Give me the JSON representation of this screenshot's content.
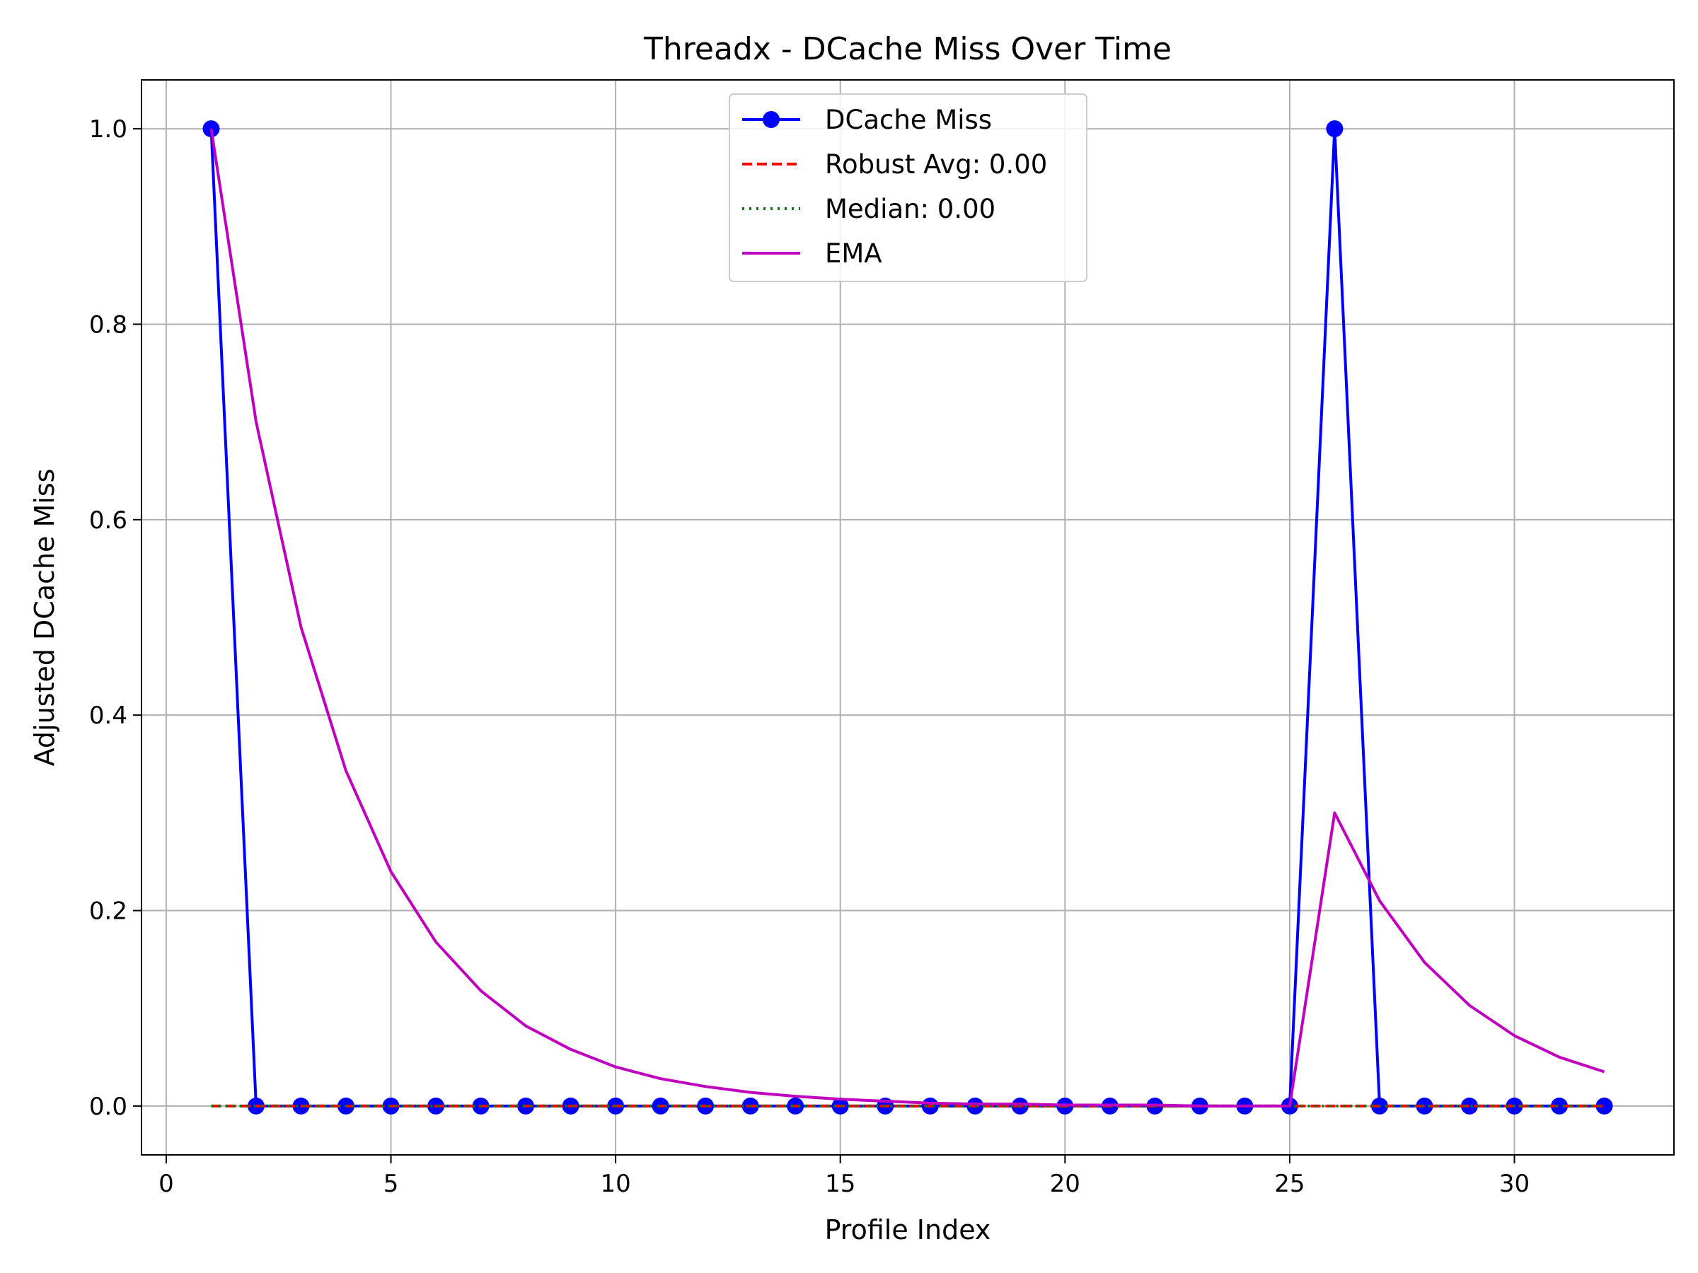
{
  "chart_data": {
    "type": "line",
    "title": "Threadx - DCache Miss Over Time",
    "xlabel": "Profile Index",
    "ylabel": "Adjusted DCache Miss",
    "xlim": [
      -0.55,
      33.55
    ],
    "ylim": [
      -0.05,
      1.05
    ],
    "xticks": [
      0,
      5,
      10,
      15,
      20,
      25,
      30
    ],
    "xtick_labels": [
      "0",
      "5",
      "10",
      "15",
      "20",
      "25",
      "30"
    ],
    "yticks": [
      0.0,
      0.2,
      0.4,
      0.6,
      0.8,
      1.0
    ],
    "ytick_labels": [
      "0.0",
      "0.2",
      "0.4",
      "0.6",
      "0.8",
      "1.0"
    ],
    "grid": true,
    "legend_position": "upper center",
    "x": [
      1,
      2,
      3,
      4,
      5,
      6,
      7,
      8,
      9,
      10,
      11,
      12,
      13,
      14,
      15,
      16,
      17,
      18,
      19,
      20,
      21,
      22,
      23,
      24,
      25,
      26,
      27,
      28,
      29,
      30,
      31,
      32
    ],
    "series": [
      {
        "name": "DCache Miss",
        "style": "solid-markers",
        "color": "#0000ff",
        "values": [
          1,
          0,
          0,
          0,
          0,
          0,
          0,
          0,
          0,
          0,
          0,
          0,
          0,
          0,
          0,
          0,
          0,
          0,
          0,
          0,
          0,
          0,
          0,
          0,
          0,
          1,
          0,
          0,
          0,
          0,
          0,
          0
        ]
      },
      {
        "name": "Robust Avg: 0.00",
        "style": "dashed",
        "color": "#ff0000",
        "values": [
          0,
          0,
          0,
          0,
          0,
          0,
          0,
          0,
          0,
          0,
          0,
          0,
          0,
          0,
          0,
          0,
          0,
          0,
          0,
          0,
          0,
          0,
          0,
          0,
          0,
          0,
          0,
          0,
          0,
          0,
          0,
          0
        ]
      },
      {
        "name": "Median: 0.00",
        "style": "dotted",
        "color": "#008000",
        "values": [
          0,
          0,
          0,
          0,
          0,
          0,
          0,
          0,
          0,
          0,
          0,
          0,
          0,
          0,
          0,
          0,
          0,
          0,
          0,
          0,
          0,
          0,
          0,
          0,
          0,
          0,
          0,
          0,
          0,
          0,
          0,
          0
        ]
      },
      {
        "name": "EMA",
        "style": "solid",
        "color": "#bf00bf",
        "values": [
          1,
          0.7,
          0.49,
          0.343,
          0.24,
          0.168,
          0.118,
          0.082,
          0.058,
          0.04,
          0.028,
          0.02,
          0.014,
          0.01,
          0.007,
          0.005,
          0.003,
          0.002,
          0.002,
          0.001,
          0.001,
          0.001,
          0,
          0,
          0,
          0.3,
          0.21,
          0.147,
          0.103,
          0.072,
          0.05,
          0.035
        ]
      }
    ]
  }
}
